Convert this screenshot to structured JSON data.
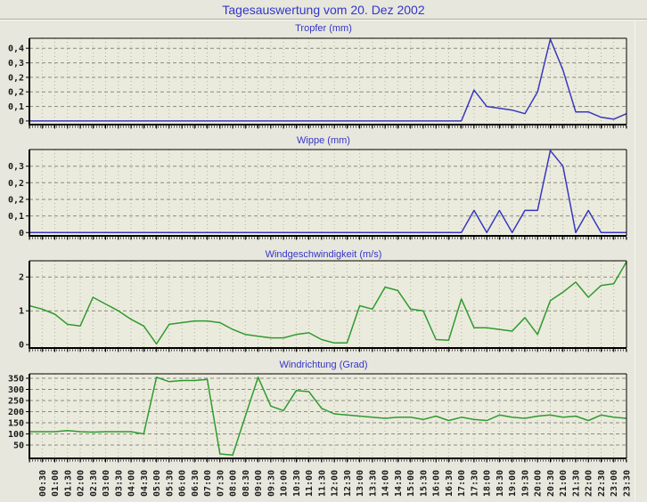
{
  "page": {
    "title": "Tagesauswertung vom 20. Dez 2002",
    "colors": {
      "background": "#E7E7DD",
      "plot_background": "#EBEBDD",
      "title_blue": "#3434CB",
      "grid_vertical": "#AFAFA5",
      "grid_horizontal": "#8A8A82",
      "axis": "#000000",
      "tick_label": "#1A1A1A",
      "series_blue": "#3838BE",
      "series_green": "#2E9B2E"
    }
  },
  "x_axis": {
    "x_start": "00:00",
    "x_interval_minutes": 30,
    "tick_labels": [
      "00:30",
      "01:00",
      "01:30",
      "02:00",
      "02:30",
      "03:00",
      "03:30",
      "04:00",
      "04:30",
      "05:00",
      "05:30",
      "06:00",
      "06:30",
      "07:00",
      "07:30",
      "08:00",
      "08:30",
      "09:00",
      "09:30",
      "10:00",
      "10:30",
      "11:00",
      "11:30",
      "12:00",
      "12:30",
      "13:00",
      "13:30",
      "14:00",
      "14:30",
      "15:00",
      "15:30",
      "16:00",
      "16:30",
      "17:00",
      "17:30",
      "18:00",
      "18:30",
      "19:00",
      "19:30",
      "20:00",
      "20:30",
      "21:00",
      "21:30",
      "22:00",
      "22:30",
      "23:00",
      "23:30"
    ]
  },
  "chart_data": [
    {
      "type": "line",
      "name": "tropfer",
      "title": "Tropfer (mm)",
      "line_color": "#3838BE",
      "ylim": [
        -0.02,
        0.455
      ],
      "y_ticks": [
        {
          "label": "0,4",
          "value": 0.4
        },
        {
          "label": "0,3",
          "value": 0.32
        },
        {
          "label": "0,2",
          "value": 0.24
        },
        {
          "label": "0,2",
          "value": 0.16
        },
        {
          "label": "0,1",
          "value": 0.08
        },
        {
          "label": "0",
          "value": 0
        }
      ],
      "values": [
        0,
        0,
        0,
        0,
        0,
        0,
        0,
        0,
        0,
        0,
        0,
        0,
        0,
        0,
        0,
        0,
        0,
        0,
        0,
        0,
        0,
        0,
        0,
        0,
        0,
        0,
        0,
        0,
        0,
        0,
        0,
        0,
        0,
        0,
        0,
        0.17,
        0.08,
        0.07,
        0.06,
        0.04,
        0.16,
        0.45,
        0.28,
        0.05,
        0.05,
        0.02,
        0.01,
        0.04
      ]
    },
    {
      "type": "line",
      "name": "wippe",
      "title": "Wippe (mm)",
      "line_color": "#3838BE",
      "ylim": [
        -0.015,
        0.375
      ],
      "y_ticks": [
        {
          "label": "0,3",
          "value": 0.3
        },
        {
          "label": "0,2",
          "value": 0.225
        },
        {
          "label": "0,2",
          "value": 0.15
        },
        {
          "label": "0,1",
          "value": 0.075
        },
        {
          "label": "0",
          "value": 0
        }
      ],
      "values": [
        0,
        0,
        0,
        0,
        0,
        0,
        0,
        0,
        0,
        0,
        0,
        0,
        0,
        0,
        0,
        0,
        0,
        0,
        0,
        0,
        0,
        0,
        0,
        0,
        0,
        0,
        0,
        0,
        0,
        0,
        0,
        0,
        0,
        0,
        0,
        0.1,
        0,
        0.1,
        0,
        0.1,
        0.1,
        0.37,
        0.3,
        0,
        0.1,
        0,
        0,
        0
      ]
    },
    {
      "type": "line",
      "name": "windgeschwindigkeit",
      "title": "Windgeschwindigkeit (m/s)",
      "line_color": "#2E9B2E",
      "ylim": [
        -0.1,
        2.48
      ],
      "y_ticks": [
        {
          "label": "2",
          "value": 2
        },
        {
          "label": "1",
          "value": 1
        },
        {
          "label": "0",
          "value": 0
        }
      ],
      "values": [
        1.15,
        1.05,
        0.9,
        0.6,
        0.55,
        1.4,
        1.2,
        1.0,
        0.75,
        0.55,
        0.02,
        0.6,
        0.65,
        0.7,
        0.7,
        0.65,
        0.45,
        0.3,
        0.25,
        0.2,
        0.2,
        0.3,
        0.35,
        0.15,
        0.05,
        0.05,
        1.15,
        1.05,
        1.7,
        1.6,
        1.05,
        1.0,
        0.15,
        0.13,
        1.35,
        0.5,
        0.5,
        0.45,
        0.4,
        0.8,
        0.3,
        1.3,
        1.55,
        1.85,
        1.4,
        1.75,
        1.8,
        2.45
      ]
    },
    {
      "type": "line",
      "name": "windrichtung",
      "title": "Windrichtung (Grad)",
      "line_color": "#2E9B2E",
      "ylim": [
        -10,
        370
      ],
      "y_ticks": [
        {
          "label": "350",
          "value": 350
        },
        {
          "label": "300",
          "value": 300
        },
        {
          "label": "250",
          "value": 250
        },
        {
          "label": "200",
          "value": 200
        },
        {
          "label": "150",
          "value": 150
        },
        {
          "label": "100",
          "value": 100
        },
        {
          "label": "50",
          "value": 50
        }
      ],
      "values": [
        110,
        110,
        110,
        115,
        110,
        108,
        110,
        110,
        110,
        100,
        355,
        335,
        340,
        340,
        345,
        10,
        5,
        180,
        355,
        225,
        205,
        295,
        290,
        215,
        190,
        185,
        180,
        175,
        170,
        175,
        175,
        165,
        180,
        160,
        175,
        165,
        160,
        185,
        175,
        170,
        180,
        185,
        175,
        180,
        160,
        185,
        175,
        170
      ]
    }
  ]
}
